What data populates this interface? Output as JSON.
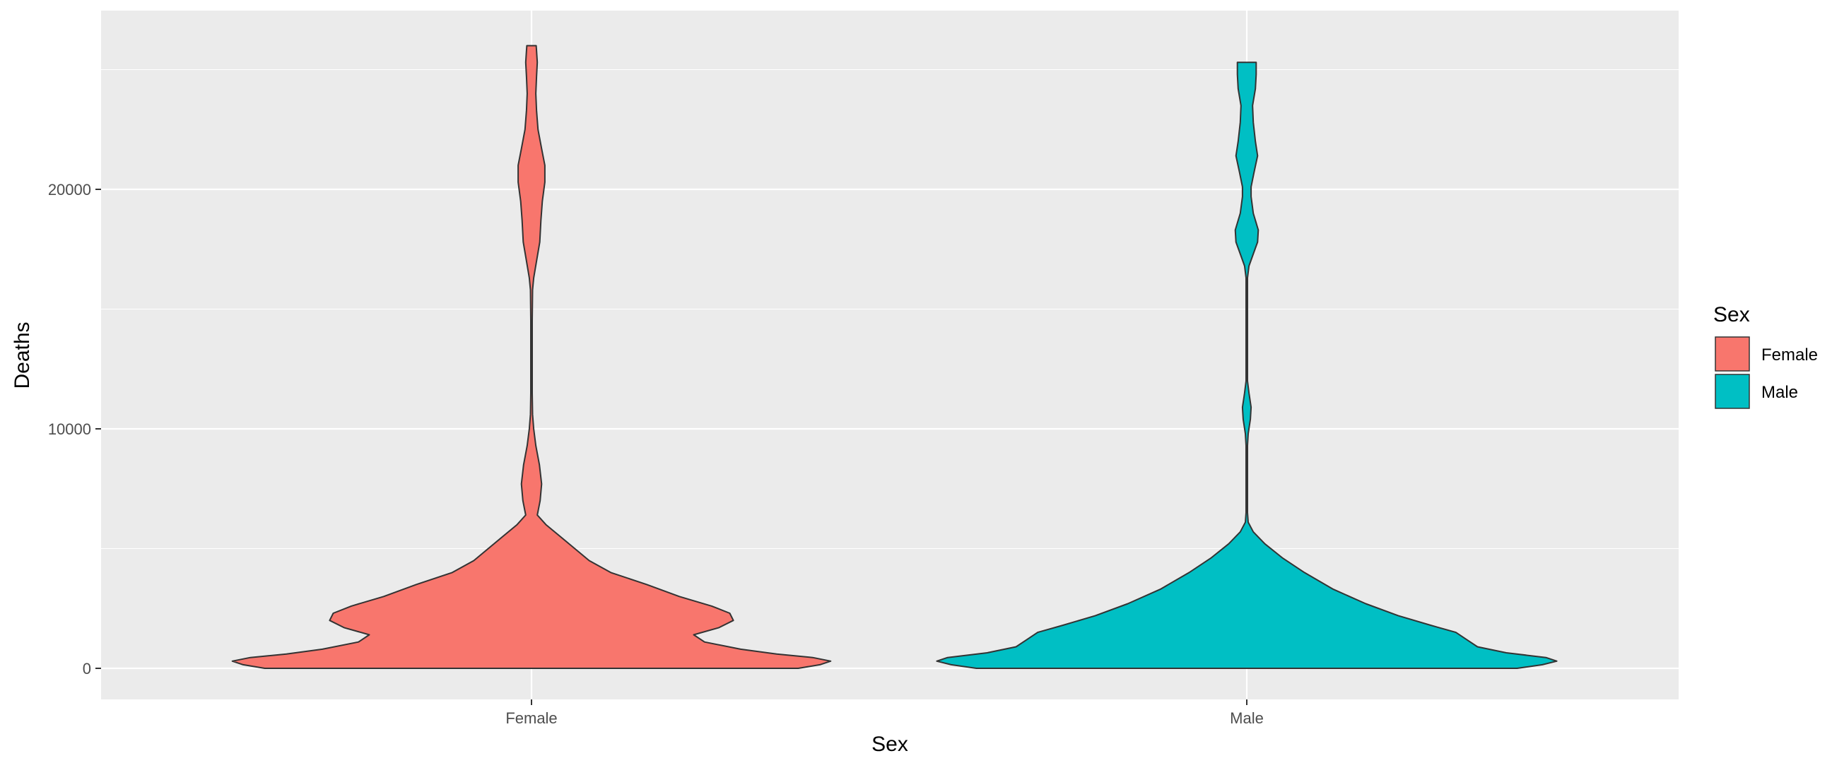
{
  "chart_data": {
    "type": "violin",
    "title": "",
    "xlabel": "Sex",
    "ylabel": "Deaths",
    "ylim": [
      -1300,
      27000
    ],
    "y_ticks": [
      0,
      10000,
      20000
    ],
    "grid": true,
    "legend": {
      "title": "Sex",
      "position": "right"
    },
    "categories": [
      "Female",
      "Male"
    ],
    "series": [
      {
        "name": "Female",
        "color": "#F8766D",
        "outline": "#333333",
        "y_max": 26000,
        "density_profile": [
          [
            0,
            0.74
          ],
          [
            150,
            0.8
          ],
          [
            300,
            0.83
          ],
          [
            450,
            0.78
          ],
          [
            600,
            0.68
          ],
          [
            800,
            0.58
          ],
          [
            1100,
            0.48
          ],
          [
            1400,
            0.45
          ],
          [
            1700,
            0.52
          ],
          [
            2000,
            0.56
          ],
          [
            2300,
            0.55
          ],
          [
            2600,
            0.5
          ],
          [
            3000,
            0.41
          ],
          [
            3500,
            0.32
          ],
          [
            4000,
            0.22
          ],
          [
            4500,
            0.16
          ],
          [
            5000,
            0.12
          ],
          [
            5500,
            0.08
          ],
          [
            6000,
            0.04
          ],
          [
            6400,
            0.016
          ],
          [
            7000,
            0.024
          ],
          [
            7700,
            0.028
          ],
          [
            8500,
            0.022
          ],
          [
            9300,
            0.012
          ],
          [
            10000,
            0.006
          ],
          [
            10600,
            0.003
          ],
          [
            11500,
            0.002
          ],
          [
            13000,
            0.002
          ],
          [
            14500,
            0.002
          ],
          [
            15800,
            0.003
          ],
          [
            16300,
            0.006
          ],
          [
            17000,
            0.014
          ],
          [
            17800,
            0.023
          ],
          [
            18700,
            0.026
          ],
          [
            19500,
            0.03
          ],
          [
            20300,
            0.037
          ],
          [
            21000,
            0.037
          ],
          [
            21700,
            0.028
          ],
          [
            22500,
            0.018
          ],
          [
            23300,
            0.014
          ],
          [
            24000,
            0.012
          ],
          [
            24700,
            0.014
          ],
          [
            25300,
            0.016
          ],
          [
            25800,
            0.014
          ],
          [
            26000,
            0.013
          ]
        ]
      },
      {
        "name": "Male",
        "color": "#00BFC4",
        "outline": "#333333",
        "y_max": 25300,
        "density_profile": [
          [
            0,
            0.75
          ],
          [
            150,
            0.82
          ],
          [
            300,
            0.86
          ],
          [
            450,
            0.83
          ],
          [
            650,
            0.72
          ],
          [
            900,
            0.64
          ],
          [
            1200,
            0.61
          ],
          [
            1500,
            0.58
          ],
          [
            1800,
            0.51
          ],
          [
            2200,
            0.42
          ],
          [
            2700,
            0.33
          ],
          [
            3300,
            0.24
          ],
          [
            4000,
            0.16
          ],
          [
            4600,
            0.1
          ],
          [
            5200,
            0.05
          ],
          [
            5700,
            0.018
          ],
          [
            6100,
            0.004
          ],
          [
            6500,
            0.002
          ],
          [
            7500,
            0.002
          ],
          [
            8500,
            0.002
          ],
          [
            9300,
            0.002
          ],
          [
            9800,
            0.004
          ],
          [
            10400,
            0.01
          ],
          [
            10900,
            0.012
          ],
          [
            11500,
            0.006
          ],
          [
            12000,
            0.002
          ],
          [
            13500,
            0.002
          ],
          [
            15000,
            0.002
          ],
          [
            16300,
            0.002
          ],
          [
            16800,
            0.006
          ],
          [
            17300,
            0.018
          ],
          [
            17800,
            0.03
          ],
          [
            18300,
            0.032
          ],
          [
            19000,
            0.018
          ],
          [
            19700,
            0.012
          ],
          [
            20100,
            0.012
          ],
          [
            20700,
            0.02
          ],
          [
            21400,
            0.03
          ],
          [
            22000,
            0.024
          ],
          [
            22800,
            0.018
          ],
          [
            23500,
            0.016
          ],
          [
            24200,
            0.024
          ],
          [
            24800,
            0.026
          ],
          [
            25300,
            0.026
          ]
        ]
      }
    ]
  }
}
